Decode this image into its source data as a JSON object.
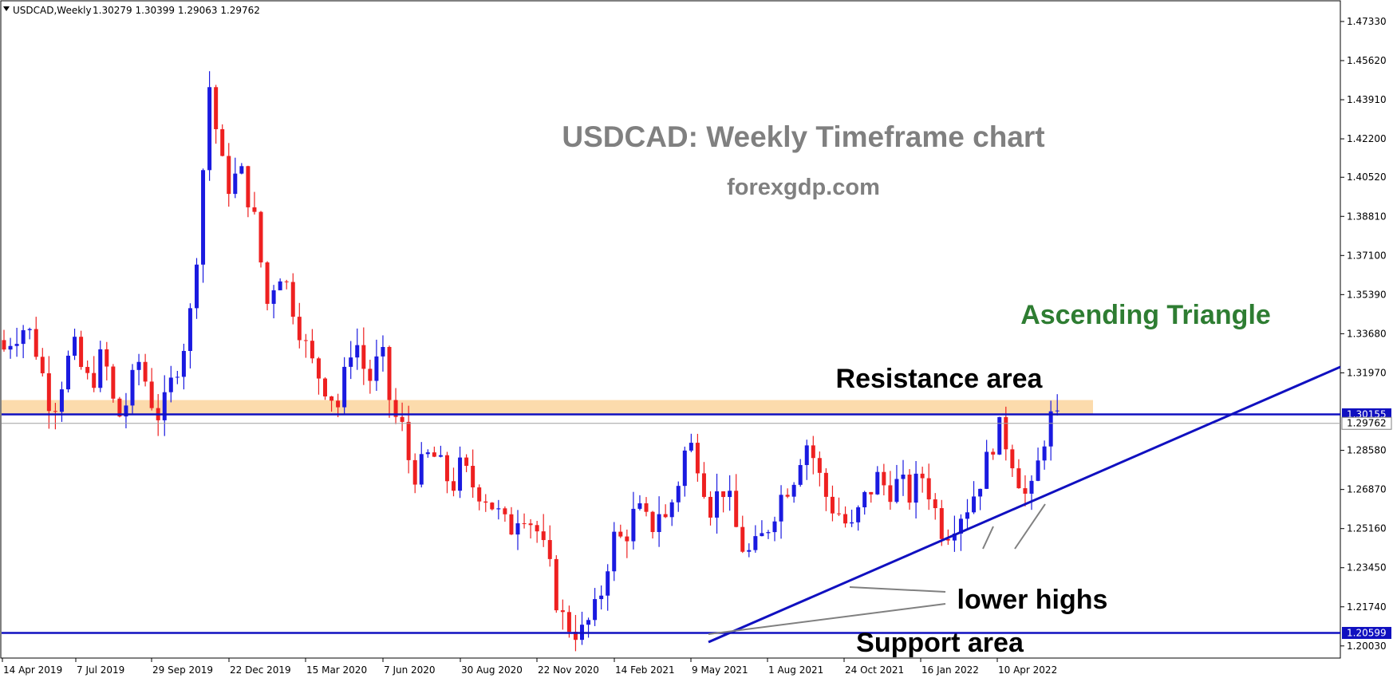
{
  "header": {
    "symbol_label": "USDCAD,Weekly",
    "ohlc": "1.30279 1.30399 1.29063 1.29762"
  },
  "annotations": {
    "title": "USDCAD: Weekly Timeframe chart",
    "site": "forexgdp.com",
    "pattern": "Ascending Triangle",
    "resistance": "Resistance area",
    "support": "Support area",
    "lower_highs": "lower highs"
  },
  "price_tags": {
    "resistance": "1.30155",
    "current": "1.29762",
    "support": "1.20599"
  },
  "colors": {
    "bull": "#1a1ae0",
    "bear": "#ee2020",
    "line": "#1010c0",
    "zone": "#fcd9a8",
    "title": "#808080",
    "pattern": "#2e7d32"
  },
  "chart_data": {
    "type": "candlestick",
    "symbol": "USDCAD",
    "timeframe": "Weekly",
    "ylim": [
      1.195,
      1.482
    ],
    "yticks": [
      1.4733,
      1.4562,
      1.4391,
      1.422,
      1.4052,
      1.3881,
      1.371,
      1.3539,
      1.3368,
      1.3197,
      1.2858,
      1.2687,
      1.2516,
      1.2345,
      1.2174,
      1.2003
    ],
    "ytick_labels": [
      "1.47330",
      "1.45620",
      "1.43910",
      "1.42200",
      "1.40520",
      "1.38810",
      "1.37100",
      "1.35390",
      "1.33680",
      "1.31970",
      "1.28580",
      "1.26870",
      "1.25160",
      "1.23450",
      "1.21740",
      "1.20030"
    ],
    "xticks": [
      "14 Apr 2019",
      "7 Jul 2019",
      "29 Sep 2019",
      "22 Dec 2019",
      "15 Mar 2020",
      "7 Jun 2020",
      "30 Aug 2020",
      "22 Nov 2020",
      "14 Feb 2021",
      "9 May 2021",
      "1 Aug 2021",
      "24 Oct 2021",
      "16 Jan 2022",
      "10 Apr 2022"
    ],
    "candle_count": 165,
    "key_closes": [
      1.33,
      1.335,
      1.338,
      1.34,
      1.335,
      1.325,
      1.31,
      1.305,
      1.315,
      1.325,
      1.33,
      1.32,
      1.315,
      1.32,
      1.33,
      1.31,
      1.3,
      1.305,
      1.315,
      1.325,
      1.315,
      1.305,
      1.3,
      1.31,
      1.32,
      1.33,
      1.34,
      1.37,
      1.41,
      1.45,
      1.42,
      1.405,
      1.4,
      1.41,
      1.4,
      1.39,
      1.37,
      1.35,
      1.36,
      1.365,
      1.355,
      1.345,
      1.335,
      1.325,
      1.32,
      1.315,
      1.31,
      1.305,
      1.32,
      1.335,
      1.33,
      1.315,
      1.32,
      1.33,
      1.31,
      1.3,
      1.295,
      1.28,
      1.275,
      1.28,
      1.285,
      1.28,
      1.275,
      1.27,
      1.278,
      1.275,
      1.27,
      1.268,
      1.265,
      1.26,
      1.255,
      1.25,
      1.258,
      1.26,
      1.255,
      1.25,
      1.24,
      1.23,
      1.215,
      1.21,
      1.208,
      1.205,
      1.21,
      1.215,
      1.225,
      1.24,
      1.25,
      1.245,
      1.255,
      1.26,
      1.255,
      1.252,
      1.26,
      1.255,
      1.265,
      1.275,
      1.29,
      1.285,
      1.278,
      1.26,
      1.265,
      1.27,
      1.262,
      1.25,
      1.242,
      1.24,
      1.245,
      1.25,
      1.258,
      1.265,
      1.27,
      1.275,
      1.285,
      1.29,
      1.28,
      1.27,
      1.262,
      1.26,
      1.255,
      1.25,
      1.258,
      1.265,
      1.27,
      1.275,
      1.268,
      1.27,
      1.272,
      1.265,
      1.27,
      1.275,
      1.268,
      1.258,
      1.25,
      1.252,
      1.258,
      1.26,
      1.265,
      1.272,
      1.28,
      1.29,
      1.295,
      1.288,
      1.28,
      1.27,
      1.262,
      1.275,
      1.29,
      1.3,
      1.2976
    ],
    "resistance_level": 1.30155,
    "support_level": 1.20599,
    "resistance_zone": [
      1.3012,
      1.3078
    ],
    "last_close": 1.29762
  }
}
